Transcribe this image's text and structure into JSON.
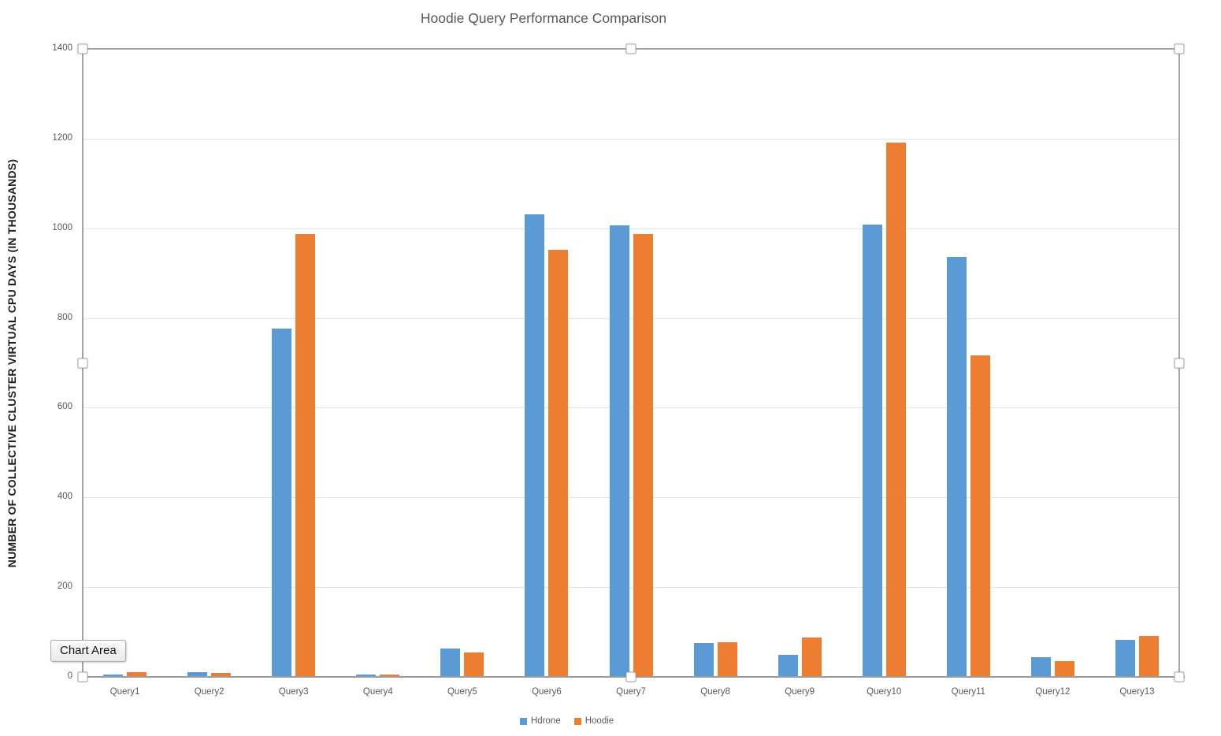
{
  "tooltip": {
    "label": "Chart Area"
  },
  "chart_data": {
    "type": "bar",
    "title": "Hoodie Query Performance Comparison",
    "xlabel": "",
    "ylabel": "NUMBER OF COLLECTIVE CLUSTER VIRTUAL CPU DAYS (IN THOUSANDS)",
    "categories": [
      "Query1",
      "Query2",
      "Query3",
      "Query4",
      "Query5",
      "Query6",
      "Query7",
      "Query8",
      "Query9",
      "Query10",
      "Query11",
      "Query12",
      "Query13"
    ],
    "series": [
      {
        "name": "Hdrone",
        "color": "#5B9BD5",
        "values": [
          4,
          8,
          775,
          4,
          62,
          1030,
          1005,
          74,
          47,
          1007,
          935,
          42,
          81
        ]
      },
      {
        "name": "Hoodie",
        "color": "#ED7D31",
        "values": [
          9,
          7,
          985,
          3,
          52,
          950,
          985,
          75,
          86,
          1190,
          715,
          33,
          89
        ]
      }
    ],
    "ylim": [
      0,
      1400
    ],
    "ytick_step": 200,
    "grid": true,
    "legend_position": "bottom"
  },
  "colors": {
    "series_hdrone": "#5B9BD5",
    "series_hoodie": "#ED7D31",
    "gridline": "#e2e2e2",
    "axis_line": "#9b9b9b",
    "text": "#595959"
  }
}
